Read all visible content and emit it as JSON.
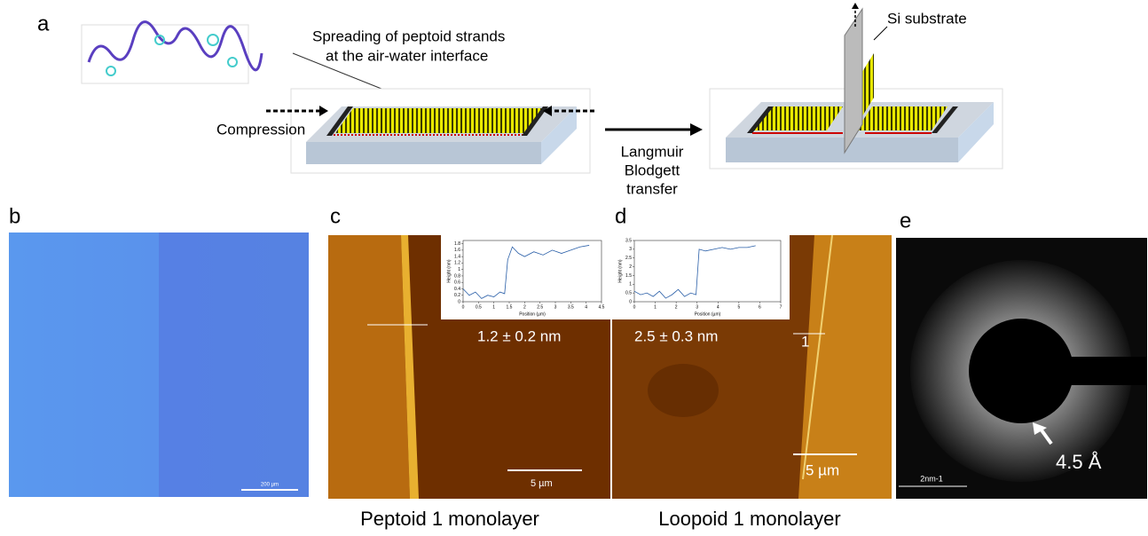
{
  "panels": {
    "a": {
      "label": "a",
      "annotation_lines": [
        "Spreading of peptoid strands",
        "at the air-water interface"
      ],
      "compression": "Compression",
      "transfer_lines": [
        "Langmuir",
        "Blodgett",
        "transfer"
      ],
      "substrate": "Si substrate"
    },
    "b": {
      "label": "b",
      "scale_bar": "200 µm"
    },
    "c": {
      "label": "c",
      "height": "1.2 ± 0.2 nm",
      "scale_bar": "5 µm",
      "caption": "Peptoid 1 monolayer",
      "inset": {
        "type": "line",
        "xlabel": "Position (µm)",
        "ylabel": "Height (nm)",
        "xlim": [
          0,
          4.5
        ],
        "ylim": [
          0,
          1.9
        ],
        "xticks": [
          0,
          0.5,
          1,
          1.5,
          2,
          2.5,
          3,
          3.5,
          4,
          4.5
        ],
        "yticks": [
          0,
          0.2,
          0.4,
          0.6,
          0.8,
          1,
          1.2,
          1.4,
          1.6,
          1.8
        ],
        "x": [
          0,
          0.2,
          0.4,
          0.6,
          0.8,
          1.0,
          1.2,
          1.35,
          1.45,
          1.6,
          1.8,
          2.0,
          2.3,
          2.6,
          2.9,
          3.2,
          3.5,
          3.8,
          4.1
        ],
        "values": [
          0.4,
          0.2,
          0.3,
          0.1,
          0.2,
          0.15,
          0.3,
          0.25,
          1.3,
          1.7,
          1.5,
          1.4,
          1.55,
          1.45,
          1.6,
          1.5,
          1.6,
          1.7,
          1.75
        ],
        "color": "#2a5fa8"
      }
    },
    "d": {
      "label": "d",
      "height": "2.5 ± 0.3 nm",
      "profile_label": "1",
      "scale_bar": "5 µm",
      "caption": "Loopoid 1 monolayer",
      "inset": {
        "type": "line",
        "xlabel": "Position (µm)",
        "ylabel": "Height (nm)",
        "xlim": [
          0,
          7
        ],
        "ylim": [
          0,
          3.5
        ],
        "xticks": [
          0,
          1,
          2,
          3,
          4,
          5,
          6,
          7
        ],
        "yticks": [
          0,
          0.5,
          1,
          1.5,
          2,
          2.5,
          3,
          3.5
        ],
        "x": [
          0,
          0.3,
          0.6,
          0.9,
          1.2,
          1.5,
          1.8,
          2.1,
          2.4,
          2.7,
          2.95,
          3.1,
          3.4,
          3.8,
          4.2,
          4.6,
          5.0,
          5.4,
          5.8
        ],
        "values": [
          0.6,
          0.4,
          0.5,
          0.3,
          0.6,
          0.2,
          0.4,
          0.7,
          0.3,
          0.5,
          0.4,
          3.0,
          2.9,
          3.0,
          3.1,
          3.0,
          3.1,
          3.1,
          3.2
        ],
        "color": "#2a5fa8"
      }
    },
    "e": {
      "label": "e",
      "scale_bar": "2nm-1",
      "spacing": "4.5 Å"
    }
  }
}
